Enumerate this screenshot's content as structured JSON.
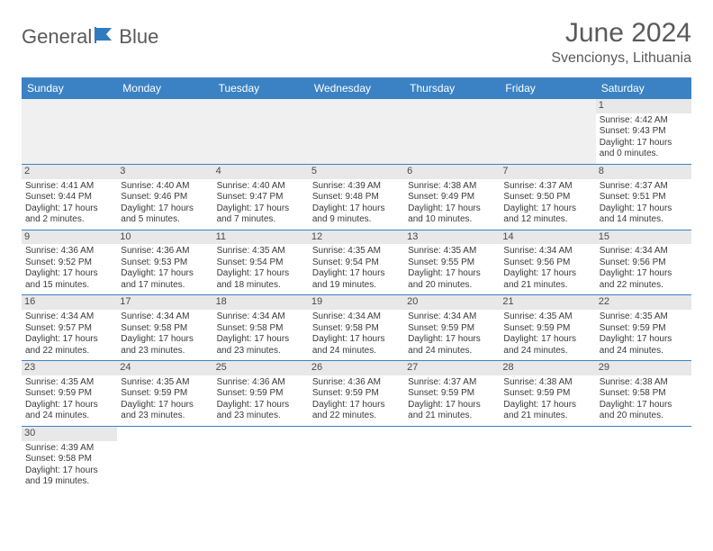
{
  "brand": {
    "general": "General",
    "blue": "Blue"
  },
  "title": "June 2024",
  "location": "Svencionys, Lithuania",
  "colors": {
    "header_bg": "#3b82c4",
    "header_text": "#ffffff",
    "daynum_bg": "#e8e8e8",
    "text": "#3a3a3a",
    "title_text": "#5a5a5a",
    "border": "#3b82c4"
  },
  "weekdays": [
    "Sunday",
    "Monday",
    "Tuesday",
    "Wednesday",
    "Thursday",
    "Friday",
    "Saturday"
  ],
  "grid": [
    [
      null,
      null,
      null,
      null,
      null,
      null,
      {
        "n": "1",
        "sr": "Sunrise: 4:42 AM",
        "ss": "Sunset: 9:43 PM",
        "d1": "Daylight: 17 hours",
        "d2": "and 0 minutes."
      }
    ],
    [
      {
        "n": "2",
        "sr": "Sunrise: 4:41 AM",
        "ss": "Sunset: 9:44 PM",
        "d1": "Daylight: 17 hours",
        "d2": "and 2 minutes."
      },
      {
        "n": "3",
        "sr": "Sunrise: 4:40 AM",
        "ss": "Sunset: 9:46 PM",
        "d1": "Daylight: 17 hours",
        "d2": "and 5 minutes."
      },
      {
        "n": "4",
        "sr": "Sunrise: 4:40 AM",
        "ss": "Sunset: 9:47 PM",
        "d1": "Daylight: 17 hours",
        "d2": "and 7 minutes."
      },
      {
        "n": "5",
        "sr": "Sunrise: 4:39 AM",
        "ss": "Sunset: 9:48 PM",
        "d1": "Daylight: 17 hours",
        "d2": "and 9 minutes."
      },
      {
        "n": "6",
        "sr": "Sunrise: 4:38 AM",
        "ss": "Sunset: 9:49 PM",
        "d1": "Daylight: 17 hours",
        "d2": "and 10 minutes."
      },
      {
        "n": "7",
        "sr": "Sunrise: 4:37 AM",
        "ss": "Sunset: 9:50 PM",
        "d1": "Daylight: 17 hours",
        "d2": "and 12 minutes."
      },
      {
        "n": "8",
        "sr": "Sunrise: 4:37 AM",
        "ss": "Sunset: 9:51 PM",
        "d1": "Daylight: 17 hours",
        "d2": "and 14 minutes."
      }
    ],
    [
      {
        "n": "9",
        "sr": "Sunrise: 4:36 AM",
        "ss": "Sunset: 9:52 PM",
        "d1": "Daylight: 17 hours",
        "d2": "and 15 minutes."
      },
      {
        "n": "10",
        "sr": "Sunrise: 4:36 AM",
        "ss": "Sunset: 9:53 PM",
        "d1": "Daylight: 17 hours",
        "d2": "and 17 minutes."
      },
      {
        "n": "11",
        "sr": "Sunrise: 4:35 AM",
        "ss": "Sunset: 9:54 PM",
        "d1": "Daylight: 17 hours",
        "d2": "and 18 minutes."
      },
      {
        "n": "12",
        "sr": "Sunrise: 4:35 AM",
        "ss": "Sunset: 9:54 PM",
        "d1": "Daylight: 17 hours",
        "d2": "and 19 minutes."
      },
      {
        "n": "13",
        "sr": "Sunrise: 4:35 AM",
        "ss": "Sunset: 9:55 PM",
        "d1": "Daylight: 17 hours",
        "d2": "and 20 minutes."
      },
      {
        "n": "14",
        "sr": "Sunrise: 4:34 AM",
        "ss": "Sunset: 9:56 PM",
        "d1": "Daylight: 17 hours",
        "d2": "and 21 minutes."
      },
      {
        "n": "15",
        "sr": "Sunrise: 4:34 AM",
        "ss": "Sunset: 9:56 PM",
        "d1": "Daylight: 17 hours",
        "d2": "and 22 minutes."
      }
    ],
    [
      {
        "n": "16",
        "sr": "Sunrise: 4:34 AM",
        "ss": "Sunset: 9:57 PM",
        "d1": "Daylight: 17 hours",
        "d2": "and 22 minutes."
      },
      {
        "n": "17",
        "sr": "Sunrise: 4:34 AM",
        "ss": "Sunset: 9:58 PM",
        "d1": "Daylight: 17 hours",
        "d2": "and 23 minutes."
      },
      {
        "n": "18",
        "sr": "Sunrise: 4:34 AM",
        "ss": "Sunset: 9:58 PM",
        "d1": "Daylight: 17 hours",
        "d2": "and 23 minutes."
      },
      {
        "n": "19",
        "sr": "Sunrise: 4:34 AM",
        "ss": "Sunset: 9:58 PM",
        "d1": "Daylight: 17 hours",
        "d2": "and 24 minutes."
      },
      {
        "n": "20",
        "sr": "Sunrise: 4:34 AM",
        "ss": "Sunset: 9:59 PM",
        "d1": "Daylight: 17 hours",
        "d2": "and 24 minutes."
      },
      {
        "n": "21",
        "sr": "Sunrise: 4:35 AM",
        "ss": "Sunset: 9:59 PM",
        "d1": "Daylight: 17 hours",
        "d2": "and 24 minutes."
      },
      {
        "n": "22",
        "sr": "Sunrise: 4:35 AM",
        "ss": "Sunset: 9:59 PM",
        "d1": "Daylight: 17 hours",
        "d2": "and 24 minutes."
      }
    ],
    [
      {
        "n": "23",
        "sr": "Sunrise: 4:35 AM",
        "ss": "Sunset: 9:59 PM",
        "d1": "Daylight: 17 hours",
        "d2": "and 24 minutes."
      },
      {
        "n": "24",
        "sr": "Sunrise: 4:35 AM",
        "ss": "Sunset: 9:59 PM",
        "d1": "Daylight: 17 hours",
        "d2": "and 23 minutes."
      },
      {
        "n": "25",
        "sr": "Sunrise: 4:36 AM",
        "ss": "Sunset: 9:59 PM",
        "d1": "Daylight: 17 hours",
        "d2": "and 23 minutes."
      },
      {
        "n": "26",
        "sr": "Sunrise: 4:36 AM",
        "ss": "Sunset: 9:59 PM",
        "d1": "Daylight: 17 hours",
        "d2": "and 22 minutes."
      },
      {
        "n": "27",
        "sr": "Sunrise: 4:37 AM",
        "ss": "Sunset: 9:59 PM",
        "d1": "Daylight: 17 hours",
        "d2": "and 21 minutes."
      },
      {
        "n": "28",
        "sr": "Sunrise: 4:38 AM",
        "ss": "Sunset: 9:59 PM",
        "d1": "Daylight: 17 hours",
        "d2": "and 21 minutes."
      },
      {
        "n": "29",
        "sr": "Sunrise: 4:38 AM",
        "ss": "Sunset: 9:58 PM",
        "d1": "Daylight: 17 hours",
        "d2": "and 20 minutes."
      }
    ],
    [
      {
        "n": "30",
        "sr": "Sunrise: 4:39 AM",
        "ss": "Sunset: 9:58 PM",
        "d1": "Daylight: 17 hours",
        "d2": "and 19 minutes."
      },
      null,
      null,
      null,
      null,
      null,
      null
    ]
  ]
}
